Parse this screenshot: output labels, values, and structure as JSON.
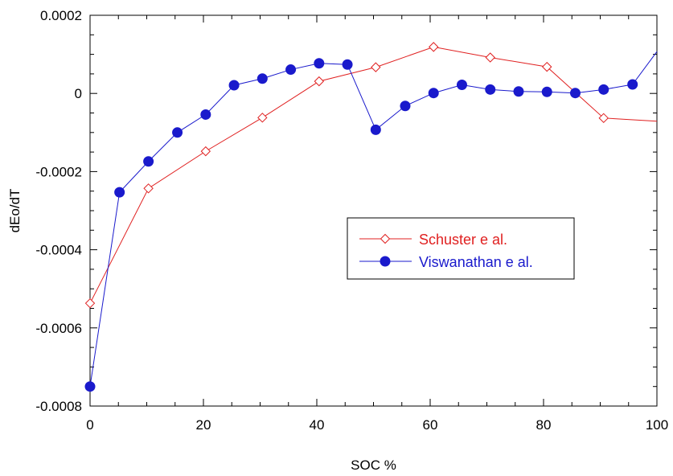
{
  "chart_data": {
    "type": "line",
    "title": "",
    "xlabel": "SOC %",
    "ylabel": "dEo/dT",
    "xlim": [
      0,
      100
    ],
    "ylim": [
      -0.0008,
      0.0002
    ],
    "x_ticks": [
      0,
      20,
      40,
      60,
      80,
      100
    ],
    "x_tick_labels": [
      "0",
      "20",
      "40",
      "60",
      "80",
      "100"
    ],
    "y_ticks": [
      0.0002,
      0,
      -0.0002,
      -0.0004,
      -0.0006,
      -0.0008
    ],
    "y_tick_labels": [
      "0.0002",
      "0",
      "-0.0002",
      "-0.0004",
      "-0.0006",
      "-0.0008"
    ],
    "grid": false,
    "legend_position": "center-right",
    "series": [
      {
        "name": "Schuster e al.",
        "color": "#e02020",
        "marker": "diamond-open",
        "points": [
          {
            "x": 0,
            "y": -0.000537
          },
          {
            "x": 10.3,
            "y": -0.000243
          },
          {
            "x": 20.4,
            "y": -0.000148
          },
          {
            "x": 30.4,
            "y": -6.2e-05
          },
          {
            "x": 40.4,
            "y": 3.1e-05
          },
          {
            "x": 50.4,
            "y": 6.7e-05
          },
          {
            "x": 60.6,
            "y": 0.000119
          },
          {
            "x": 70.6,
            "y": 9.2e-05
          },
          {
            "x": 80.6,
            "y": 6.8e-05
          },
          {
            "x": 90.6,
            "y": -6.3e-05
          },
          {
            "x": 100,
            "y": -7.1e-05
          }
        ]
      },
      {
        "name": "Viswanathan e al.",
        "color": "#1a1acc",
        "marker": "circle-filled",
        "points": [
          {
            "x": 0,
            "y": -0.00075
          },
          {
            "x": 5.2,
            "y": -0.000253
          },
          {
            "x": 10.3,
            "y": -0.000174
          },
          {
            "x": 15.4,
            "y": -0.0001
          },
          {
            "x": 20.4,
            "y": -5.4e-05
          },
          {
            "x": 25.4,
            "y": 2.1e-05
          },
          {
            "x": 30.4,
            "y": 3.8e-05
          },
          {
            "x": 35.4,
            "y": 6.1e-05
          },
          {
            "x": 40.4,
            "y": 7.7e-05
          },
          {
            "x": 45.4,
            "y": 7.4e-05
          },
          {
            "x": 50.4,
            "y": -9.3e-05
          },
          {
            "x": 55.6,
            "y": -3.2e-05
          },
          {
            "x": 60.6,
            "y": 1e-06
          },
          {
            "x": 65.6,
            "y": 2.2e-05
          },
          {
            "x": 70.6,
            "y": 1e-05
          },
          {
            "x": 75.6,
            "y": 5e-06
          },
          {
            "x": 80.6,
            "y": 4e-06
          },
          {
            "x": 85.6,
            "y": 1e-06
          },
          {
            "x": 90.6,
            "y": 1e-05
          },
          {
            "x": 95.7,
            "y": 2.3e-05
          },
          {
            "x": 100,
            "y": 0.000107
          }
        ]
      }
    ]
  }
}
